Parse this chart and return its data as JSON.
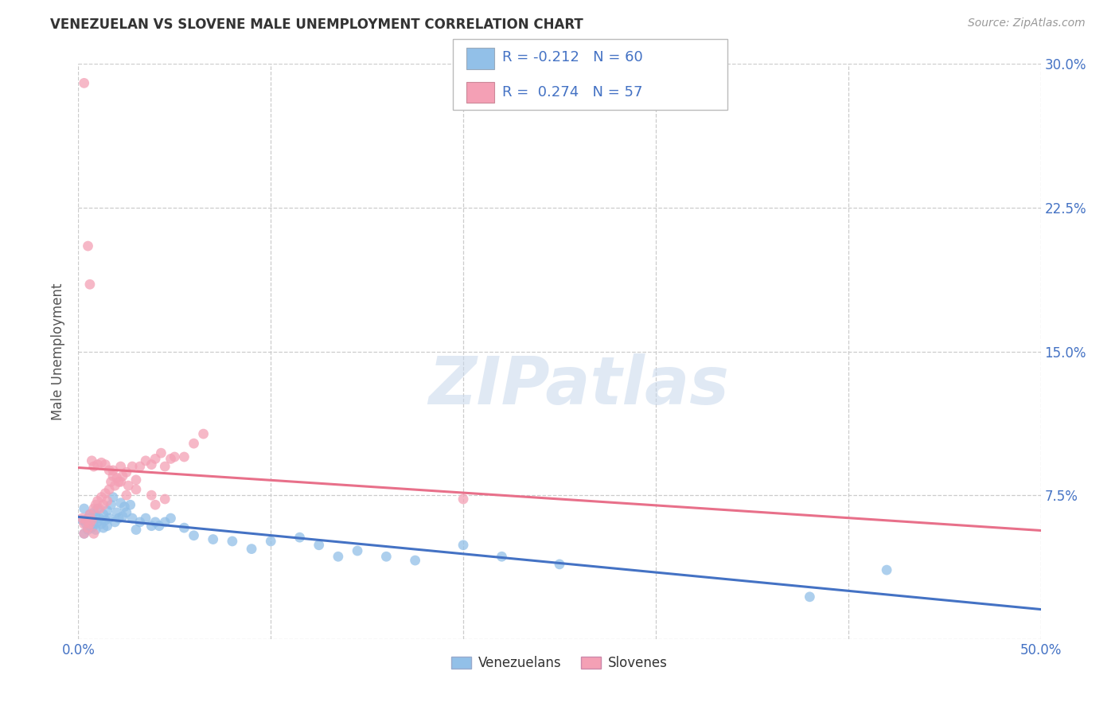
{
  "title": "VENEZUELAN VS SLOVENE MALE UNEMPLOYMENT CORRELATION CHART",
  "source": "Source: ZipAtlas.com",
  "ylabel": "Male Unemployment",
  "xlim": [
    0.0,
    0.5
  ],
  "ylim": [
    0.0,
    0.3
  ],
  "blue_color": "#92C0E8",
  "pink_color": "#F4A0B5",
  "blue_line_color": "#4472C4",
  "pink_line_color": "#E8708A",
  "legend_R_blue": "-0.212",
  "legend_N_blue": "60",
  "legend_R_pink": "0.274",
  "legend_N_pink": "57",
  "legend_label_blue": "Venezuelans",
  "legend_label_pink": "Slovenes",
  "watermark_text": "ZIPatlas",
  "background_color": "#FFFFFF",
  "grid_color": "#CCCCCC"
}
